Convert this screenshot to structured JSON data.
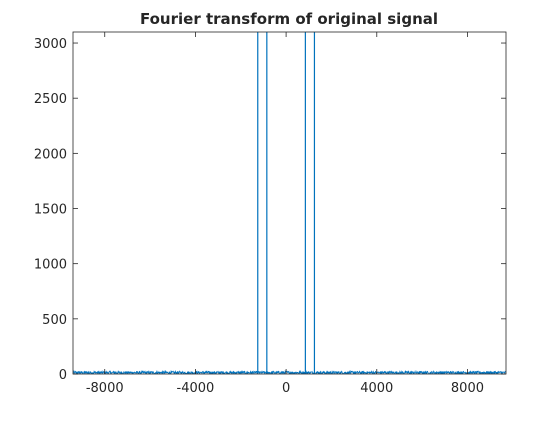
{
  "chart_data": {
    "type": "line",
    "title": "Fourier transform of original signal",
    "xlabel": "",
    "ylabel": "",
    "xlim": [
      -9400,
      9700
    ],
    "ylim": [
      0,
      3100
    ],
    "xticks": [
      -8000,
      -4000,
      0,
      4000,
      8000
    ],
    "xtick_labels": [
      "-8000",
      "-4000",
      "0",
      "4000",
      "8000"
    ],
    "yticks": [
      0,
      500,
      1000,
      1500,
      2000,
      2500,
      3000
    ],
    "ytick_labels": [
      "0",
      "500",
      "1000",
      "1500",
      "2000",
      "2500",
      "3000"
    ],
    "grid": false,
    "noise_floor_max": 25,
    "series": [
      {
        "color": "#0072bd",
        "spikes": [
          {
            "x": -1250,
            "y": 3100
          },
          {
            "x": -850,
            "y": 3100
          },
          {
            "x": 850,
            "y": 3100
          },
          {
            "x": 1250,
            "y": 3100
          }
        ]
      }
    ]
  }
}
